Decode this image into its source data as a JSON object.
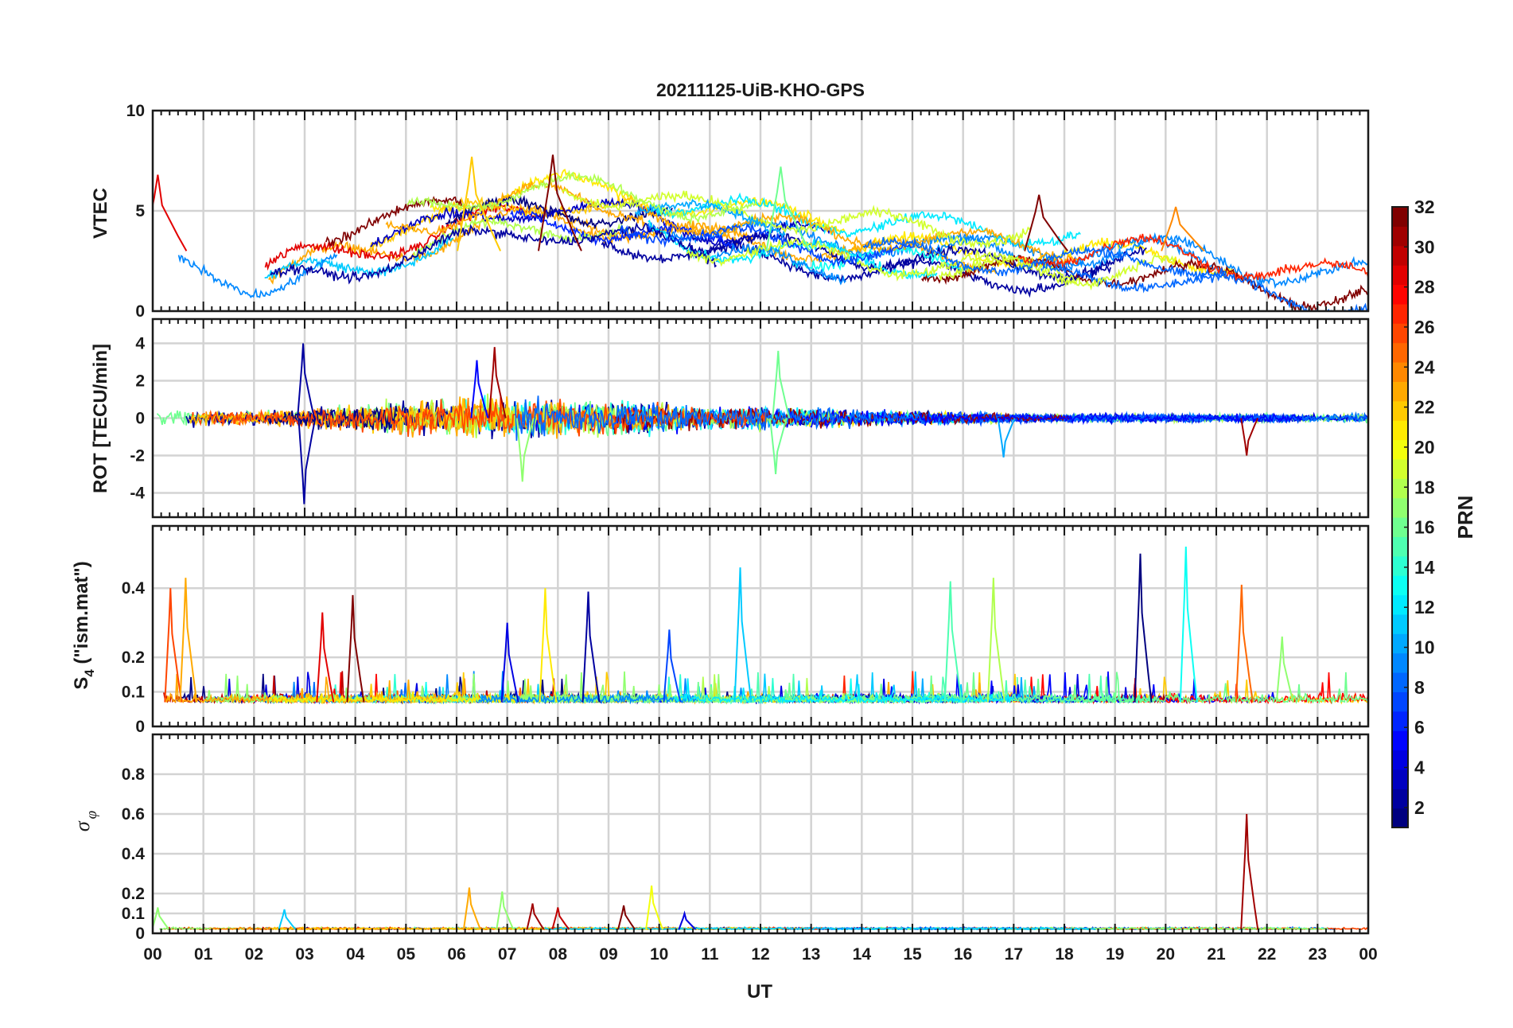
{
  "title": "20211125-UiB-KHO-GPS",
  "chart_data": [
    {
      "type": "line",
      "panel": "VTEC",
      "ylabel": "VTEC",
      "ylim": [
        0,
        10
      ],
      "yticks": [
        0,
        5,
        10
      ],
      "xlim": [
        0,
        24
      ],
      "grid": true,
      "series_color_by": "PRN",
      "envelope": {
        "x": [
          0,
          0.5,
          1,
          1.5,
          2,
          2.5,
          3,
          3.5,
          4,
          4.5,
          5,
          5.5,
          6,
          6.5,
          7,
          7.5,
          8,
          8.5,
          9,
          9.5,
          10,
          10.5,
          11,
          11.5,
          12,
          12.5,
          13,
          13.5,
          14,
          14.5,
          15,
          15.5,
          16,
          16.5,
          17,
          17.5,
          18,
          18.5,
          19,
          19.5,
          20,
          20.5,
          21,
          21.5,
          22,
          22.5,
          23,
          23.5,
          24
        ],
        "median": [
          3.0,
          2.8,
          2.4,
          2.1,
          2.0,
          2.3,
          2.8,
          3.0,
          3.2,
          3.4,
          3.6,
          3.8,
          4.2,
          4.5,
          4.8,
          5.0,
          5.0,
          4.8,
          4.6,
          4.5,
          4.3,
          4.0,
          3.8,
          3.7,
          3.6,
          3.5,
          3.4,
          3.3,
          3.2,
          3.1,
          3.0,
          2.9,
          2.8,
          2.8,
          2.7,
          2.7,
          2.6,
          2.6,
          2.7,
          2.8,
          2.8,
          2.6,
          2.3,
          2.0,
          1.8,
          1.6,
          1.5,
          1.5,
          1.5
        ]
      },
      "peaks": [
        {
          "x": 7.9,
          "y": 7.8,
          "prn": 32
        },
        {
          "x": 6.3,
          "y": 7.7,
          "prn": 22
        },
        {
          "x": 12.4,
          "y": 7.2,
          "prn": 16
        },
        {
          "x": 0.1,
          "y": 6.8,
          "prn": 29
        },
        {
          "x": 17.5,
          "y": 5.8,
          "prn": 32
        },
        {
          "x": 20.2,
          "y": 5.2,
          "prn": 24
        }
      ]
    },
    {
      "type": "line",
      "panel": "ROT",
      "ylabel": "ROT [TECU/min]",
      "ylim": [
        -5.3,
        5.3
      ],
      "yticks": [
        -4,
        -2,
        0,
        2,
        4
      ],
      "xlim": [
        0,
        24
      ],
      "grid": true,
      "amplitude_envelope": {
        "x": [
          0,
          1,
          2,
          3,
          4,
          5,
          6,
          7,
          8,
          9,
          10,
          11,
          12,
          13,
          14,
          15,
          16,
          17,
          18,
          19,
          20,
          21,
          22,
          23,
          24
        ],
        "amp": [
          0.9,
          0.6,
          0.5,
          0.7,
          0.9,
          1.2,
          1.3,
          1.4,
          1.3,
          1.2,
          1.1,
          0.8,
          0.9,
          0.7,
          0.6,
          0.5,
          0.4,
          0.3,
          0.25,
          0.3,
          0.3,
          0.25,
          0.3,
          0.25,
          0.3
        ]
      },
      "spikes": [
        {
          "x": 2.97,
          "y": 4.0,
          "prn": 2
        },
        {
          "x": 2.99,
          "y": -4.6,
          "prn": 2
        },
        {
          "x": 6.75,
          "y": 3.8,
          "prn": 31
        },
        {
          "x": 6.4,
          "y": 3.1,
          "prn": 5
        },
        {
          "x": 12.35,
          "y": 3.6,
          "prn": 16
        },
        {
          "x": 12.3,
          "y": -3.0,
          "prn": 16
        },
        {
          "x": 7.3,
          "y": -3.4,
          "prn": 17
        },
        {
          "x": 21.6,
          "y": -2.0,
          "prn": 31
        },
        {
          "x": 16.8,
          "y": -2.1,
          "prn": 10
        }
      ]
    },
    {
      "type": "line",
      "panel": "S4",
      "ylabel": "S4 (\"ism.mat\")",
      "ylim": [
        0,
        0.58
      ],
      "yticks": [
        0,
        0.1,
        0.2,
        0.4
      ],
      "xlim": [
        0,
        24
      ],
      "grid": true,
      "baseline": 0.07,
      "peaks": [
        {
          "x": 0.35,
          "y": 0.4,
          "prn": 26
        },
        {
          "x": 0.65,
          "y": 0.43,
          "prn": 23
        },
        {
          "x": 3.35,
          "y": 0.33,
          "prn": 29
        },
        {
          "x": 3.95,
          "y": 0.38,
          "prn": 32
        },
        {
          "x": 7.0,
          "y": 0.3,
          "prn": 4
        },
        {
          "x": 7.75,
          "y": 0.4,
          "prn": 21
        },
        {
          "x": 8.6,
          "y": 0.39,
          "prn": 2
        },
        {
          "x": 10.2,
          "y": 0.28,
          "prn": 7
        },
        {
          "x": 11.6,
          "y": 0.46,
          "prn": 11
        },
        {
          "x": 15.75,
          "y": 0.42,
          "prn": 15
        },
        {
          "x": 16.6,
          "y": 0.43,
          "prn": 18
        },
        {
          "x": 19.5,
          "y": 0.5,
          "prn": 1
        },
        {
          "x": 20.4,
          "y": 0.52,
          "prn": 13
        },
        {
          "x": 21.5,
          "y": 0.41,
          "prn": 25
        },
        {
          "x": 22.3,
          "y": 0.26,
          "prn": 17
        }
      ]
    },
    {
      "type": "line",
      "panel": "sigma_phi",
      "ylabel": "σ φ",
      "ylim": [
        0,
        1.0
      ],
      "yticks": [
        0,
        0.1,
        0.2,
        0.4,
        0.6,
        0.8
      ],
      "xlim": [
        0,
        24
      ],
      "grid": true,
      "baseline": 0.02,
      "peaks": [
        {
          "x": 0.1,
          "y": 0.13,
          "prn": 17
        },
        {
          "x": 2.6,
          "y": 0.12,
          "prn": 11
        },
        {
          "x": 6.25,
          "y": 0.23,
          "prn": 23
        },
        {
          "x": 6.9,
          "y": 0.21,
          "prn": 17
        },
        {
          "x": 7.5,
          "y": 0.15,
          "prn": 31
        },
        {
          "x": 8.0,
          "y": 0.13,
          "prn": 30
        },
        {
          "x": 9.3,
          "y": 0.14,
          "prn": 32
        },
        {
          "x": 9.85,
          "y": 0.24,
          "prn": 20
        },
        {
          "x": 10.5,
          "y": 0.1,
          "prn": 4
        },
        {
          "x": 21.6,
          "y": 0.6,
          "prn": 31
        }
      ]
    }
  ],
  "xaxis": {
    "label": "UT",
    "ticklabels": [
      "00",
      "01",
      "02",
      "03",
      "04",
      "05",
      "06",
      "07",
      "08",
      "09",
      "10",
      "11",
      "12",
      "13",
      "14",
      "15",
      "16",
      "17",
      "18",
      "19",
      "20",
      "21",
      "22",
      "23",
      "00"
    ]
  },
  "colorbar": {
    "label": "PRN",
    "range": [
      1,
      32
    ],
    "colormap": "jet",
    "ticks": [
      2,
      4,
      6,
      8,
      10,
      12,
      14,
      16,
      18,
      20,
      22,
      24,
      26,
      28,
      30,
      32
    ]
  },
  "labels": {
    "vtec_ylabel": "VTEC",
    "rot_ylabel": "ROT [TECU/min]",
    "s4_main": "S",
    "s4_sub": "4",
    "s4_rest": " (\"ism.mat\")",
    "sigma_main": "σ",
    "sigma_sub": "φ",
    "xlabel": "UT",
    "colorbar_label": "PRN"
  }
}
